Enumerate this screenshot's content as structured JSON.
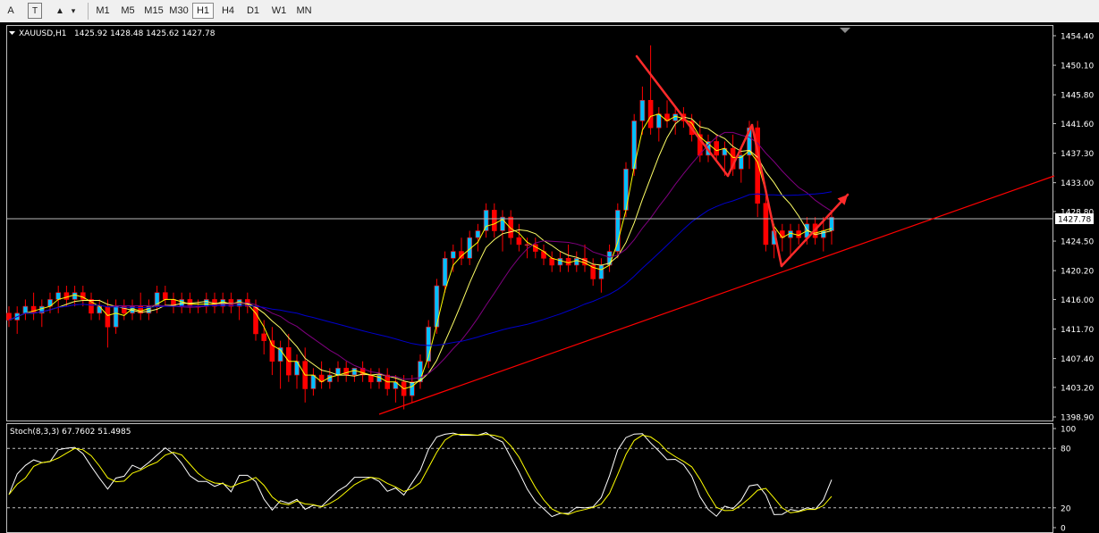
{
  "toolbar": {
    "text_tool": "A",
    "text_label_tool": "T",
    "shapes_tool": "▲",
    "dropdown_arrow": "▾",
    "timeframes": [
      "M1",
      "M5",
      "M15",
      "M30",
      "H1",
      "H4",
      "D1",
      "W1",
      "MN"
    ],
    "active_timeframe": "H1"
  },
  "chart_data": [
    {
      "type": "candlestick",
      "title": "XAUUSD,H1",
      "ohlc_header": "1425.92 1428.48 1425.62 1427.78",
      "current_price": 1427.78,
      "current_price_label": "1427.78",
      "ylim": [
        1398.9,
        1454.4
      ],
      "y_ticks": [
        "1454.40",
        "1450.10",
        "1445.80",
        "1441.60",
        "1437.30",
        "1433.00",
        "1428.80",
        "1424.50",
        "1420.20",
        "1416.00",
        "1411.70",
        "1407.40",
        "1403.20",
        "1398.90"
      ],
      "candles_approx": [
        [
          1414,
          1415,
          1412,
          1413
        ],
        [
          1413,
          1415,
          1411,
          1414
        ],
        [
          1414,
          1416,
          1413,
          1415
        ],
        [
          1415,
          1417,
          1413,
          1414
        ],
        [
          1414,
          1416,
          1412,
          1415
        ],
        [
          1415,
          1417,
          1414,
          1416
        ],
        [
          1416,
          1418,
          1414,
          1417
        ],
        [
          1417,
          1418,
          1415,
          1416
        ],
        [
          1416,
          1418,
          1415,
          1417
        ],
        [
          1417,
          1418,
          1415,
          1416
        ],
        [
          1416,
          1417,
          1413,
          1414
        ],
        [
          1414,
          1416,
          1413,
          1415
        ],
        [
          1415,
          1416,
          1409,
          1412
        ],
        [
          1412,
          1416,
          1411,
          1415
        ],
        [
          1415,
          1416,
          1413,
          1414
        ],
        [
          1414,
          1416,
          1413,
          1415
        ],
        [
          1415,
          1417,
          1413,
          1414
        ],
        [
          1414,
          1416,
          1413,
          1415
        ],
        [
          1415,
          1418,
          1414,
          1417
        ],
        [
          1417,
          1418,
          1415,
          1416
        ],
        [
          1416,
          1417,
          1414,
          1415
        ],
        [
          1415,
          1417,
          1414,
          1416
        ],
        [
          1416,
          1417,
          1414,
          1415
        ],
        [
          1415,
          1416,
          1414,
          1415
        ],
        [
          1415,
          1417,
          1414,
          1416
        ],
        [
          1416,
          1417,
          1414,
          1415
        ],
        [
          1415,
          1417,
          1414,
          1416
        ],
        [
          1416,
          1417,
          1414,
          1415
        ],
        [
          1415,
          1416,
          1413,
          1416
        ],
        [
          1416,
          1417,
          1414,
          1415
        ],
        [
          1415,
          1416,
          1410,
          1411
        ],
        [
          1411,
          1413,
          1408,
          1410
        ],
        [
          1410,
          1412,
          1405,
          1407
        ],
        [
          1407,
          1410,
          1403,
          1409
        ],
        [
          1409,
          1411,
          1404,
          1405
        ],
        [
          1405,
          1408,
          1403,
          1407
        ],
        [
          1407,
          1409,
          1401,
          1403
        ],
        [
          1403,
          1406,
          1402,
          1405
        ],
        [
          1405,
          1407,
          1403,
          1404
        ],
        [
          1404,
          1406,
          1403,
          1405
        ],
        [
          1405,
          1407,
          1404,
          1406
        ],
        [
          1406,
          1407,
          1404,
          1405
        ],
        [
          1405,
          1406,
          1404,
          1406
        ],
        [
          1406,
          1407,
          1404,
          1405
        ],
        [
          1405,
          1406,
          1403,
          1404
        ],
        [
          1404,
          1406,
          1403,
          1405
        ],
        [
          1405,
          1406,
          1402,
          1403
        ],
        [
          1403,
          1405,
          1401,
          1404
        ],
        [
          1404,
          1405,
          1400,
          1402
        ],
        [
          1402,
          1405,
          1401,
          1404
        ],
        [
          1404,
          1408,
          1403,
          1407
        ],
        [
          1407,
          1413,
          1406,
          1412
        ],
        [
          1412,
          1419,
          1411,
          1418
        ],
        [
          1418,
          1423,
          1417,
          1422
        ],
        [
          1422,
          1424,
          1420,
          1423
        ],
        [
          1423,
          1425,
          1421,
          1422
        ],
        [
          1422,
          1426,
          1421,
          1425
        ],
        [
          1425,
          1427,
          1423,
          1426
        ],
        [
          1426,
          1430,
          1425,
          1429
        ],
        [
          1429,
          1430,
          1425,
          1426
        ],
        [
          1426,
          1429,
          1423,
          1428
        ],
        [
          1428,
          1429,
          1424,
          1425
        ],
        [
          1425,
          1427,
          1423,
          1424
        ],
        [
          1424,
          1425,
          1422,
          1424
        ],
        [
          1424,
          1425,
          1422,
          1423
        ],
        [
          1423,
          1424,
          1421,
          1422
        ],
        [
          1422,
          1423,
          1420,
          1421
        ],
        [
          1421,
          1423,
          1420,
          1422
        ],
        [
          1422,
          1424,
          1420,
          1421
        ],
        [
          1421,
          1423,
          1420,
          1422
        ],
        [
          1422,
          1424,
          1420,
          1421
        ],
        [
          1421,
          1422,
          1418,
          1419
        ],
        [
          1419,
          1422,
          1417,
          1421
        ],
        [
          1421,
          1424,
          1420,
          1423
        ],
        [
          1423,
          1430,
          1422,
          1429
        ],
        [
          1429,
          1436,
          1428,
          1435
        ],
        [
          1435,
          1443,
          1434,
          1442
        ],
        [
          1442,
          1447,
          1440,
          1445
        ],
        [
          1445,
          1453,
          1440,
          1441
        ],
        [
          1441,
          1444,
          1439,
          1443
        ],
        [
          1443,
          1445,
          1441,
          1442
        ],
        [
          1442,
          1444,
          1440,
          1443
        ],
        [
          1443,
          1444,
          1441,
          1442
        ],
        [
          1442,
          1443,
          1439,
          1440
        ],
        [
          1440,
          1442,
          1436,
          1437
        ],
        [
          1437,
          1440,
          1436,
          1439
        ],
        [
          1439,
          1440,
          1436,
          1437
        ],
        [
          1437,
          1439,
          1434,
          1438
        ],
        [
          1438,
          1440,
          1434,
          1435
        ],
        [
          1435,
          1438,
          1433,
          1437
        ],
        [
          1437,
          1442,
          1435,
          1441
        ],
        [
          1441,
          1442,
          1428,
          1430
        ],
        [
          1430,
          1431,
          1423,
          1424
        ],
        [
          1424,
          1427,
          1422,
          1426
        ],
        [
          1426,
          1427,
          1423,
          1425
        ],
        [
          1425,
          1427,
          1422,
          1426
        ],
        [
          1426,
          1427,
          1424,
          1425
        ],
        [
          1425,
          1428,
          1424,
          1427
        ],
        [
          1427,
          1428,
          1424,
          1425
        ],
        [
          1425,
          1428,
          1423,
          1426
        ],
        [
          1426,
          1429,
          1424,
          1428
        ]
      ],
      "overlays": [
        {
          "name": "MA fast",
          "color": "#ffff00"
        },
        {
          "name": "MA slow",
          "color": "#ffff66"
        },
        {
          "name": "MA medium",
          "color": "#800080"
        },
        {
          "name": "MA long",
          "color": "#0000cd"
        }
      ],
      "trendline_color": "#ff0000",
      "arrow_color": "#ff2b2b"
    },
    {
      "type": "line",
      "title": "Stoch(8,3,3) 67.7602 51.4985",
      "ylim": [
        0,
        100
      ],
      "y_ticks": [
        "100",
        "80",
        "20",
        "0"
      ],
      "levels": [
        80,
        20
      ],
      "main_color": "#ffffff",
      "signal_color": "#ffff00"
    }
  ]
}
